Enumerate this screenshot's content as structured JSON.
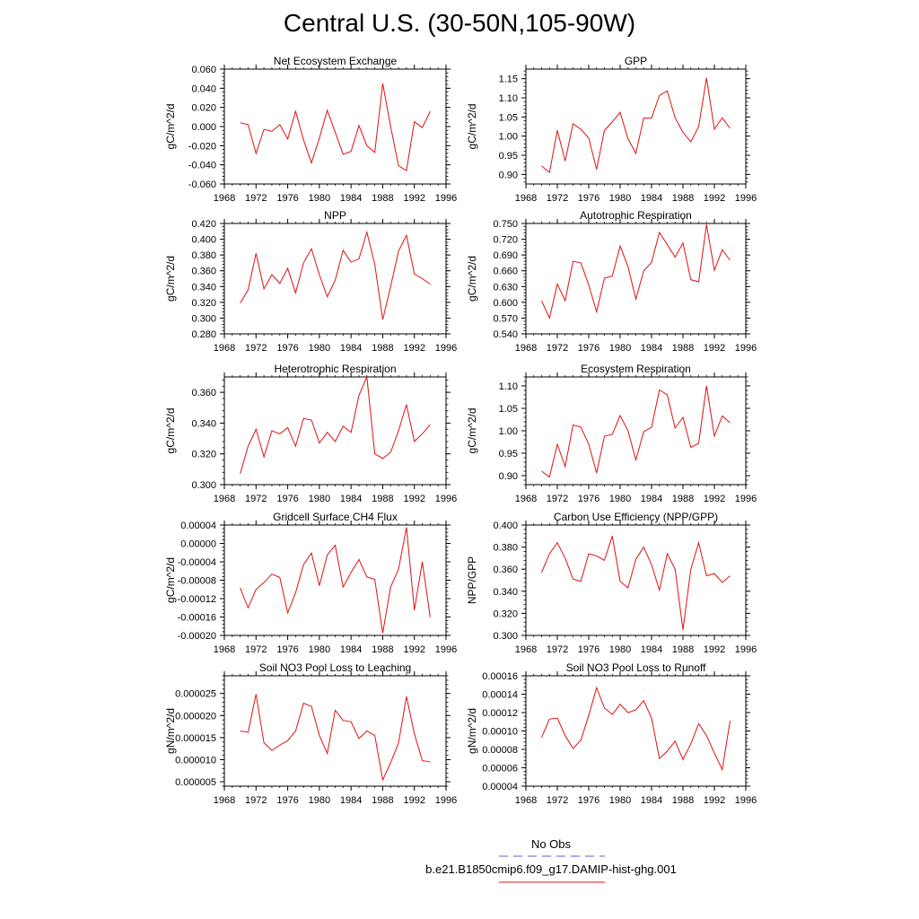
{
  "page": {
    "title": "Central U.S. (30-50N,105-90W)"
  },
  "legend": {
    "entries": [
      {
        "label": "No Obs",
        "color": "#5a5adc",
        "style": "dashed"
      },
      {
        "label": "b.e21.B1850cmip6.f09_g17.DAMIP-hist-ghg.001",
        "color": "#e01010",
        "style": "solid"
      }
    ]
  },
  "colors": {
    "series": "#e01010",
    "axis": "#000000"
  },
  "chart_data": [
    {
      "type": "line",
      "title": "Net Ecosystem Exchange",
      "ylabel": "gC/m^2/d",
      "xlim": [
        1968,
        1996
      ],
      "ylim": [
        -0.06,
        0.06
      ],
      "xticks": [
        "1968",
        "1972",
        "1976",
        "1980",
        "1984",
        "1988",
        "1992",
        "1996"
      ],
      "yticks": [
        "-0.060",
        "-0.040",
        "-0.020",
        "0.000",
        "0.020",
        "0.040",
        "0.060"
      ],
      "x": [
        1970,
        1971,
        1972,
        1973,
        1974,
        1975,
        1976,
        1977,
        1978,
        1979,
        1980,
        1981,
        1982,
        1983,
        1984,
        1985,
        1986,
        1987,
        1988,
        1989,
        1990,
        1991,
        1992,
        1993,
        1994
      ],
      "series": [
        {
          "values": [
            0.004,
            0.002,
            -0.028,
            -0.003,
            -0.005,
            0.002,
            -0.013,
            0.016,
            -0.014,
            -0.038,
            -0.012,
            0.017,
            -0.006,
            -0.029,
            -0.026,
            0.001,
            -0.02,
            -0.027,
            0.045,
            0.0,
            -0.041,
            -0.046,
            0.005,
            -0.001,
            0.016
          ]
        }
      ]
    },
    {
      "type": "line",
      "title": "GPP",
      "ylabel": "gC/m^2/d",
      "xlim": [
        1968,
        1996
      ],
      "ylim": [
        0.875,
        1.175
      ],
      "xticks": [
        "1968",
        "1972",
        "1976",
        "1980",
        "1984",
        "1988",
        "1992",
        "1996"
      ],
      "yticks": [
        "0.90",
        "0.95",
        "1.00",
        "1.05",
        "1.10",
        "1.15"
      ],
      "x": [
        1970,
        1971,
        1972,
        1973,
        1974,
        1975,
        1976,
        1977,
        1978,
        1979,
        1980,
        1981,
        1982,
        1983,
        1984,
        1985,
        1986,
        1987,
        1988,
        1989,
        1990,
        1991,
        1992,
        1993,
        1994
      ],
      "series": [
        {
          "values": [
            0.922,
            0.905,
            1.015,
            0.935,
            1.032,
            1.018,
            0.995,
            0.913,
            1.015,
            1.037,
            1.062,
            0.993,
            0.955,
            1.047,
            1.047,
            1.106,
            1.118,
            1.048,
            1.01,
            0.985,
            1.025,
            1.152,
            1.018,
            1.048,
            1.02
          ]
        }
      ]
    },
    {
      "type": "line",
      "title": "NPP",
      "ylabel": "gC/m^2/d",
      "xlim": [
        1968,
        1996
      ],
      "ylim": [
        0.28,
        0.42
      ],
      "xticks": [
        "1968",
        "1972",
        "1976",
        "1980",
        "1984",
        "1988",
        "1992",
        "1996"
      ],
      "yticks": [
        "0.280",
        "0.300",
        "0.320",
        "0.340",
        "0.360",
        "0.380",
        "0.400",
        "0.420"
      ],
      "x": [
        1970,
        1971,
        1972,
        1973,
        1974,
        1975,
        1976,
        1977,
        1978,
        1979,
        1980,
        1981,
        1982,
        1983,
        1984,
        1985,
        1986,
        1987,
        1988,
        1989,
        1990,
        1991,
        1992,
        1993,
        1994
      ],
      "series": [
        {
          "values": [
            0.319,
            0.336,
            0.382,
            0.337,
            0.355,
            0.344,
            0.363,
            0.332,
            0.37,
            0.388,
            0.355,
            0.327,
            0.348,
            0.386,
            0.371,
            0.375,
            0.409,
            0.368,
            0.298,
            0.34,
            0.385,
            0.405,
            0.356,
            0.35,
            0.343
          ]
        }
      ]
    },
    {
      "type": "line",
      "title": "Autotrophic Respiration",
      "ylabel": "gC/m^2/d",
      "xlim": [
        1968,
        1996
      ],
      "ylim": [
        0.54,
        0.75
      ],
      "xticks": [
        "1968",
        "1972",
        "1976",
        "1980",
        "1984",
        "1988",
        "1992",
        "1996"
      ],
      "yticks": [
        "0.540",
        "0.570",
        "0.600",
        "0.630",
        "0.660",
        "0.690",
        "0.720",
        "0.750"
      ],
      "x": [
        1970,
        1971,
        1972,
        1973,
        1974,
        1975,
        1976,
        1977,
        1978,
        1979,
        1980,
        1981,
        1982,
        1983,
        1984,
        1985,
        1986,
        1987,
        1988,
        1989,
        1990,
        1991,
        1992,
        1993,
        1994
      ],
      "series": [
        {
          "values": [
            0.603,
            0.57,
            0.635,
            0.603,
            0.678,
            0.675,
            0.633,
            0.582,
            0.646,
            0.65,
            0.707,
            0.668,
            0.606,
            0.66,
            0.676,
            0.733,
            0.71,
            0.686,
            0.713,
            0.643,
            0.639,
            0.748,
            0.661,
            0.7,
            0.68
          ]
        }
      ]
    },
    {
      "type": "line",
      "title": "Heterotrophic Respiration",
      "ylabel": "gC/m^2/d",
      "xlim": [
        1968,
        1996
      ],
      "ylim": [
        0.3,
        0.37
      ],
      "xticks": [
        "1968",
        "1972",
        "1976",
        "1980",
        "1984",
        "1988",
        "1992",
        "1996"
      ],
      "yticks": [
        "0.300",
        "0.320",
        "0.340",
        "0.360"
      ],
      "x": [
        1970,
        1971,
        1972,
        1973,
        1974,
        1975,
        1976,
        1977,
        1978,
        1979,
        1980,
        1981,
        1982,
        1983,
        1984,
        1985,
        1986,
        1987,
        1988,
        1989,
        1990,
        1991,
        1992,
        1993,
        1994
      ],
      "series": [
        {
          "values": [
            0.307,
            0.325,
            0.336,
            0.318,
            0.335,
            0.333,
            0.337,
            0.325,
            0.343,
            0.342,
            0.327,
            0.334,
            0.328,
            0.338,
            0.334,
            0.358,
            0.37,
            0.32,
            0.317,
            0.321,
            0.335,
            0.352,
            0.328,
            0.333,
            0.339
          ]
        }
      ]
    },
    {
      "type": "line",
      "title": "Ecosystem Respiration",
      "ylabel": "gC/m^2/d",
      "xlim": [
        1968,
        1996
      ],
      "ylim": [
        0.88,
        1.12
      ],
      "xticks": [
        "1968",
        "1972",
        "1976",
        "1980",
        "1984",
        "1988",
        "1992",
        "1996"
      ],
      "yticks": [
        "0.90",
        "0.95",
        "1.00",
        "1.05",
        "1.10"
      ],
      "x": [
        1970,
        1971,
        1972,
        1973,
        1974,
        1975,
        1976,
        1977,
        1978,
        1979,
        1980,
        1981,
        1982,
        1983,
        1984,
        1985,
        1986,
        1987,
        1988,
        1989,
        1990,
        1991,
        1992,
        1993,
        1994
      ],
      "series": [
        {
          "values": [
            0.91,
            0.897,
            0.97,
            0.92,
            1.013,
            1.008,
            0.97,
            0.906,
            0.988,
            0.992,
            1.034,
            1.0,
            0.935,
            0.998,
            1.008,
            1.091,
            1.08,
            1.006,
            1.03,
            0.963,
            0.972,
            1.1,
            0.988,
            1.033,
            1.018
          ]
        }
      ]
    },
    {
      "type": "line",
      "title": "Gridcell Surface CH4 Flux",
      "ylabel": "gC/m^2/d",
      "xlim": [
        1968,
        1996
      ],
      "ylim": [
        -0.0002,
        4e-05
      ],
      "xticks": [
        "1968",
        "1972",
        "1976",
        "1980",
        "1984",
        "1988",
        "1992",
        "1996"
      ],
      "yticks": [
        "-0.00020",
        "-0.00016",
        "-0.00012",
        "-0.00008",
        "-0.00004",
        "0.00000",
        "0.00004"
      ],
      "x": [
        1970,
        1971,
        1972,
        1973,
        1974,
        1975,
        1976,
        1977,
        1978,
        1979,
        1980,
        1981,
        1982,
        1983,
        1984,
        1985,
        1986,
        1987,
        1988,
        1989,
        1990,
        1991,
        1992,
        1993,
        1994
      ],
      "series": [
        {
          "values": [
            -9.7e-05,
            -0.00014,
            -0.0001,
            -8.5e-05,
            -6.7e-05,
            -7.4e-05,
            -0.000151,
            -0.000107,
            -4.6e-05,
            -2.1e-05,
            -9.2e-05,
            -2.5e-05,
            -4e-06,
            -9.5e-05,
            -6.3e-05,
            -3.5e-05,
            -7.3e-05,
            -7.8e-05,
            -0.000195,
            -9.5e-05,
            -5.6e-05,
            3.5e-05,
            -0.000145,
            -4e-05,
            -0.00016
          ]
        }
      ]
    },
    {
      "type": "line",
      "title": "Carbon Use Efficiency (NPP/GPP)",
      "ylabel": "NPP/GPP",
      "xlim": [
        1968,
        1996
      ],
      "ylim": [
        0.3,
        0.4
      ],
      "xticks": [
        "1968",
        "1972",
        "1976",
        "1980",
        "1984",
        "1988",
        "1992",
        "1996"
      ],
      "yticks": [
        "0.300",
        "0.320",
        "0.340",
        "0.360",
        "0.380",
        "0.400"
      ],
      "x": [
        1970,
        1971,
        1972,
        1973,
        1974,
        1975,
        1976,
        1977,
        1978,
        1979,
        1980,
        1981,
        1982,
        1983,
        1984,
        1985,
        1986,
        1987,
        1988,
        1989,
        1990,
        1991,
        1992,
        1993,
        1994
      ],
      "series": [
        {
          "values": [
            0.357,
            0.374,
            0.384,
            0.37,
            0.351,
            0.349,
            0.374,
            0.372,
            0.368,
            0.39,
            0.349,
            0.343,
            0.369,
            0.38,
            0.364,
            0.341,
            0.374,
            0.36,
            0.305,
            0.36,
            0.384,
            0.354,
            0.356,
            0.348,
            0.354
          ]
        }
      ]
    },
    {
      "type": "line",
      "title": "Soil NO3 Pool Loss to Leaching",
      "ylabel": "gN/m^2/d",
      "xlim": [
        1968,
        1996
      ],
      "ylim": [
        4e-06,
        2.9e-05
      ],
      "xticks": [
        "1968",
        "1972",
        "1976",
        "1980",
        "1984",
        "1988",
        "1992",
        "1996"
      ],
      "yticks": [
        "0.000005",
        "0.000010",
        "0.000015",
        "0.000020",
        "0.000025"
      ],
      "x": [
        1970,
        1971,
        1972,
        1973,
        1974,
        1975,
        1976,
        1977,
        1978,
        1979,
        1980,
        1981,
        1982,
        1983,
        1984,
        1985,
        1986,
        1987,
        1988,
        1989,
        1990,
        1991,
        1992,
        1993,
        1994
      ],
      "series": [
        {
          "values": [
            1.65e-05,
            1.62e-05,
            2.48e-05,
            1.38e-05,
            1.21e-05,
            1.33e-05,
            1.43e-05,
            1.65e-05,
            2.28e-05,
            2.21e-05,
            1.55e-05,
            1.14e-05,
            2.12e-05,
            1.89e-05,
            1.86e-05,
            1.48e-05,
            1.65e-05,
            1.55e-05,
            5.4e-06,
            9.3e-06,
            1.38e-05,
            2.43e-05,
            1.59e-05,
            9.8e-06,
            9.5e-06
          ]
        }
      ]
    },
    {
      "type": "line",
      "title": "Soil NO3 Pool Loss to Runoff",
      "ylabel": "gN/m^2/d",
      "xlim": [
        1968,
        1996
      ],
      "ylim": [
        4e-05,
        0.00016
      ],
      "xticks": [
        "1968",
        "1972",
        "1976",
        "1980",
        "1984",
        "1988",
        "1992",
        "1996"
      ],
      "yticks": [
        "0.00004",
        "0.00006",
        "0.00008",
        "0.00010",
        "0.00012",
        "0.00014",
        "0.00016"
      ],
      "x": [
        1970,
        1971,
        1972,
        1973,
        1974,
        1975,
        1976,
        1977,
        1978,
        1979,
        1980,
        1981,
        1982,
        1983,
        1984,
        1985,
        1986,
        1987,
        1988,
        1989,
        1990,
        1991,
        1992,
        1993,
        1994
      ],
      "series": [
        {
          "values": [
            9.3e-05,
            0.000113,
            0.000114,
            9.5e-05,
            8.1e-05,
            9e-05,
            0.000117,
            0.000147,
            0.000125,
            0.000118,
            0.000129,
            0.00012,
            0.000123,
            0.000133,
            0.000114,
            7e-05,
            7.8e-05,
            8.9e-05,
            6.9e-05,
            8.6e-05,
            0.000108,
            9.5e-05,
            7.6e-05,
            5.8e-05,
            0.000111
          ]
        }
      ]
    }
  ]
}
